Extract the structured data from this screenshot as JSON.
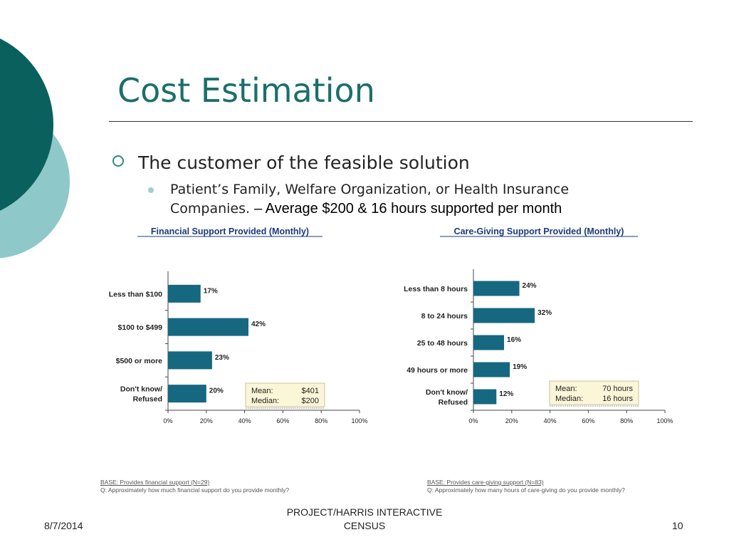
{
  "slide": {
    "title": "Cost Estimation",
    "bullet1": "The customer of the feasible solution",
    "bullet2_normal": "Patient’s Family, Welfare Organization, or Health Insurance Companies. ",
    "bullet2_emph": "– Average $200 & 16 hours supported per month",
    "footer_date": "8/7/2014",
    "footer_center_1": "PROJECT/HARRIS INTERACTIVE",
    "footer_center_2": "CENSUS",
    "footer_page": "10",
    "colors": {
      "accent": "#1b6f6b",
      "dark_teal": "#0a605c",
      "light_teal": "#8fc8c8",
      "bar": "#15687f",
      "stat_box": "#fbf6d7"
    }
  },
  "chart_data": [
    {
      "type": "bar",
      "orientation": "horizontal",
      "title": "Financial Support Provided (Monthly)",
      "categories": [
        [
          "Less than $100"
        ],
        [
          "$100 to $499"
        ],
        [
          "$500 or more"
        ],
        [
          "Don't know/",
          "Refused"
        ]
      ],
      "values": [
        17,
        42,
        23,
        20
      ],
      "value_labels": [
        "17%",
        "42%",
        "23%",
        "20%"
      ],
      "xlim": [
        0,
        100
      ],
      "xticks": [
        "0%",
        "20%",
        "40%",
        "60%",
        "80%",
        "100%"
      ],
      "stats": {
        "mean_label": "Mean:",
        "mean_value": "$401",
        "median_label": "Median:",
        "median_value": "$200"
      },
      "base_note": "BASE: Provides financial support (N=29)",
      "question_note": "Q: Approximately how much financial support do you provide monthly?"
    },
    {
      "type": "bar",
      "orientation": "horizontal",
      "title": "Care-Giving Support Provided (Monthly)",
      "categories": [
        [
          "Less than 8 hours"
        ],
        [
          "8 to 24 hours"
        ],
        [
          "25 to 48 hours"
        ],
        [
          "49 hours or more"
        ],
        [
          "Don't know/",
          "Refused"
        ]
      ],
      "values": [
        24,
        32,
        16,
        19,
        12
      ],
      "value_labels": [
        "24%",
        "32%",
        "16%",
        "19%",
        "12%"
      ],
      "xlim": [
        0,
        100
      ],
      "xticks": [
        "0%",
        "20%",
        "40%",
        "60%",
        "80%",
        "100%"
      ],
      "stats": {
        "mean_label": "Mean:",
        "mean_value": "70 hours",
        "median_label": "Median:",
        "median_value": "16 hours"
      },
      "base_note": "BASE: Provides care-giving support (N=83)",
      "question_note": "Q: Approximately how many hours of care-giving do you provide monthly?"
    }
  ]
}
